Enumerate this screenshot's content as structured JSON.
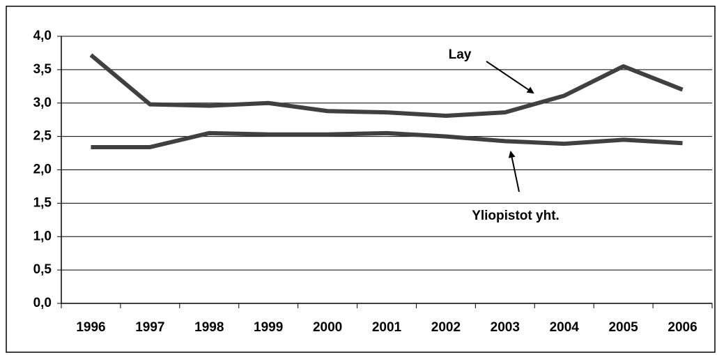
{
  "chart_data": {
    "type": "line",
    "categories": [
      "1996",
      "1997",
      "1998",
      "1999",
      "2000",
      "2001",
      "2002",
      "2003",
      "2004",
      "2005",
      "2006"
    ],
    "series": [
      {
        "name": "Lay",
        "color": "#404040",
        "values": [
          3.72,
          2.98,
          2.96,
          3.0,
          2.88,
          2.86,
          2.81,
          2.86,
          3.11,
          3.55,
          3.2
        ]
      },
      {
        "name": "Yliopistot yht.",
        "color": "#404040",
        "values": [
          2.34,
          2.34,
          2.55,
          2.53,
          2.53,
          2.55,
          2.5,
          2.43,
          2.39,
          2.45,
          2.4
        ]
      }
    ],
    "ylim": [
      0,
      4
    ],
    "yticks": [
      {
        "value": 0,
        "label": "0,0"
      },
      {
        "value": 0.5,
        "label": "0,5"
      },
      {
        "value": 1,
        "label": "1,0"
      },
      {
        "value": 1.5,
        "label": "1,5"
      },
      {
        "value": 2,
        "label": "2,0"
      },
      {
        "value": 2.5,
        "label": "2,5"
      },
      {
        "value": 3,
        "label": "3,0"
      },
      {
        "value": 3.5,
        "label": "3,5"
      },
      {
        "value": 4,
        "label": "4,0"
      }
    ],
    "grid": true
  }
}
